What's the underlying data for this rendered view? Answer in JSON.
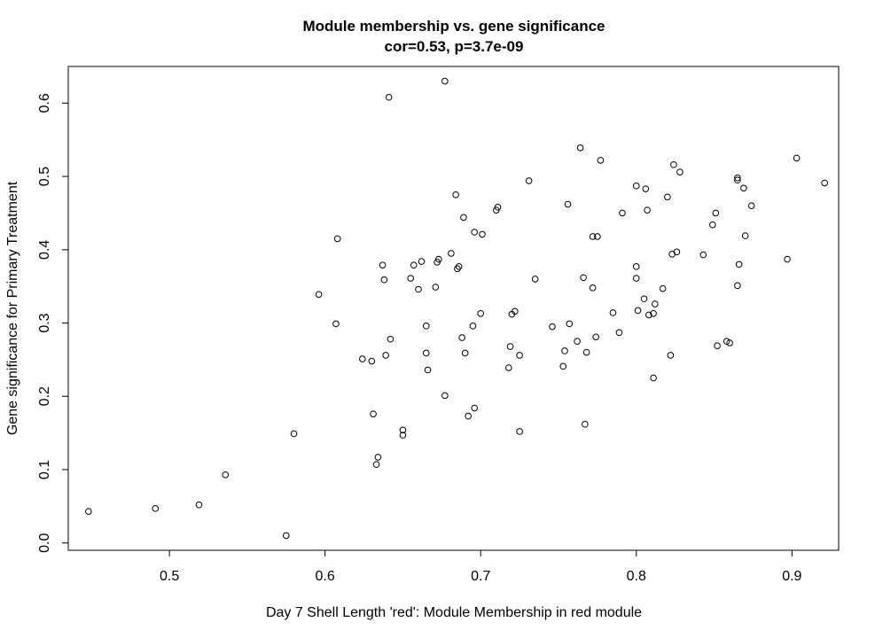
{
  "chart_data": {
    "type": "scatter",
    "title": "Module membership vs. gene significance",
    "subtitle": "cor=0.53, p=3.7e-09",
    "xlabel": "Day 7 Shell Length 'red': Module Membership in red module",
    "ylabel": "Gene significance for Primary Treatment",
    "xlim": [
      0.435,
      0.93
    ],
    "ylim": [
      -0.01,
      0.65
    ],
    "xticks": [
      0.5,
      0.6,
      0.7,
      0.8,
      0.9
    ],
    "xtick_labels": [
      "0.5",
      "0.6",
      "0.7",
      "0.8",
      "0.9"
    ],
    "yticks": [
      0.0,
      0.1,
      0.2,
      0.3,
      0.4,
      0.5,
      0.6
    ],
    "ytick_labels": [
      "0.0",
      "0.1",
      "0.2",
      "0.3",
      "0.4",
      "0.5",
      "0.6"
    ],
    "grid": false,
    "legend": "none",
    "point_color": "#000000",
    "points": [
      [
        0.448,
        0.043
      ],
      [
        0.491,
        0.047
      ],
      [
        0.519,
        0.052
      ],
      [
        0.536,
        0.093
      ],
      [
        0.575,
        0.01
      ],
      [
        0.58,
        0.149
      ],
      [
        0.596,
        0.339
      ],
      [
        0.607,
        0.299
      ],
      [
        0.608,
        0.415
      ],
      [
        0.624,
        0.251
      ],
      [
        0.63,
        0.248
      ],
      [
        0.631,
        0.176
      ],
      [
        0.633,
        0.107
      ],
      [
        0.634,
        0.117
      ],
      [
        0.637,
        0.379
      ],
      [
        0.638,
        0.359
      ],
      [
        0.639,
        0.256
      ],
      [
        0.641,
        0.608
      ],
      [
        0.642,
        0.278
      ],
      [
        0.65,
        0.154
      ],
      [
        0.65,
        0.147
      ],
      [
        0.655,
        0.361
      ],
      [
        0.657,
        0.379
      ],
      [
        0.66,
        0.346
      ],
      [
        0.662,
        0.384
      ],
      [
        0.665,
        0.296
      ],
      [
        0.665,
        0.259
      ],
      [
        0.666,
        0.236
      ],
      [
        0.671,
        0.349
      ],
      [
        0.672,
        0.383
      ],
      [
        0.673,
        0.387
      ],
      [
        0.677,
        0.63
      ],
      [
        0.677,
        0.201
      ],
      [
        0.681,
        0.395
      ],
      [
        0.684,
        0.475
      ],
      [
        0.685,
        0.374
      ],
      [
        0.686,
        0.377
      ],
      [
        0.688,
        0.28
      ],
      [
        0.689,
        0.444
      ],
      [
        0.69,
        0.259
      ],
      [
        0.692,
        0.173
      ],
      [
        0.695,
        0.296
      ],
      [
        0.696,
        0.424
      ],
      [
        0.696,
        0.184
      ],
      [
        0.7,
        0.313
      ],
      [
        0.701,
        0.421
      ],
      [
        0.71,
        0.454
      ],
      [
        0.711,
        0.458
      ],
      [
        0.718,
        0.239
      ],
      [
        0.719,
        0.268
      ],
      [
        0.72,
        0.312
      ],
      [
        0.722,
        0.316
      ],
      [
        0.725,
        0.256
      ],
      [
        0.725,
        0.152
      ],
      [
        0.731,
        0.494
      ],
      [
        0.735,
        0.36
      ],
      [
        0.746,
        0.295
      ],
      [
        0.753,
        0.241
      ],
      [
        0.754,
        0.262
      ],
      [
        0.756,
        0.462
      ],
      [
        0.757,
        0.299
      ],
      [
        0.762,
        0.275
      ],
      [
        0.764,
        0.539
      ],
      [
        0.766,
        0.362
      ],
      [
        0.767,
        0.162
      ],
      [
        0.768,
        0.26
      ],
      [
        0.772,
        0.418
      ],
      [
        0.772,
        0.348
      ],
      [
        0.774,
        0.281
      ],
      [
        0.775,
        0.418
      ],
      [
        0.777,
        0.522
      ],
      [
        0.785,
        0.314
      ],
      [
        0.789,
        0.287
      ],
      [
        0.791,
        0.45
      ],
      [
        0.8,
        0.361
      ],
      [
        0.8,
        0.487
      ],
      [
        0.8,
        0.377
      ],
      [
        0.801,
        0.317
      ],
      [
        0.805,
        0.333
      ],
      [
        0.806,
        0.483
      ],
      [
        0.807,
        0.454
      ],
      [
        0.808,
        0.311
      ],
      [
        0.811,
        0.313
      ],
      [
        0.811,
        0.225
      ],
      [
        0.812,
        0.326
      ],
      [
        0.817,
        0.347
      ],
      [
        0.82,
        0.472
      ],
      [
        0.822,
        0.256
      ],
      [
        0.823,
        0.394
      ],
      [
        0.824,
        0.516
      ],
      [
        0.826,
        0.397
      ],
      [
        0.828,
        0.506
      ],
      [
        0.843,
        0.393
      ],
      [
        0.849,
        0.434
      ],
      [
        0.851,
        0.45
      ],
      [
        0.852,
        0.269
      ],
      [
        0.858,
        0.275
      ],
      [
        0.86,
        0.273
      ],
      [
        0.865,
        0.498
      ],
      [
        0.865,
        0.495
      ],
      [
        0.865,
        0.351
      ],
      [
        0.866,
        0.38
      ],
      [
        0.869,
        0.484
      ],
      [
        0.87,
        0.419
      ],
      [
        0.874,
        0.46
      ],
      [
        0.897,
        0.387
      ],
      [
        0.903,
        0.525
      ],
      [
        0.921,
        0.491
      ]
    ]
  }
}
